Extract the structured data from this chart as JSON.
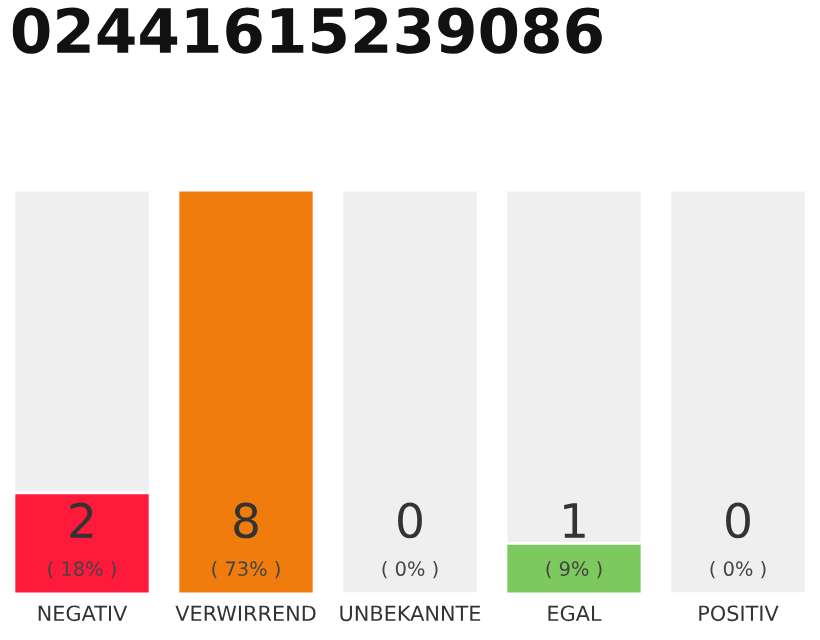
{
  "chart_data": {
    "type": "bar",
    "title": "02441615239086",
    "categories": [
      "NEGATIV",
      "VERWIRREND",
      "UNBEKANNTE",
      "EGAL",
      "POSITIV"
    ],
    "values": [
      2,
      8,
      0,
      1,
      0
    ],
    "colors": [
      "#ff1a3c",
      "#f07c0e",
      null,
      "#7dc95e",
      null
    ],
    "ylim": [
      0,
      8
    ],
    "tick_labels": "x",
    "data_labels": true,
    "grid": false,
    "legend": false,
    "annotations": [
      "( 18% )",
      "( 73% )",
      "( 0% )",
      "( 9% )",
      "( 0% )"
    ]
  }
}
